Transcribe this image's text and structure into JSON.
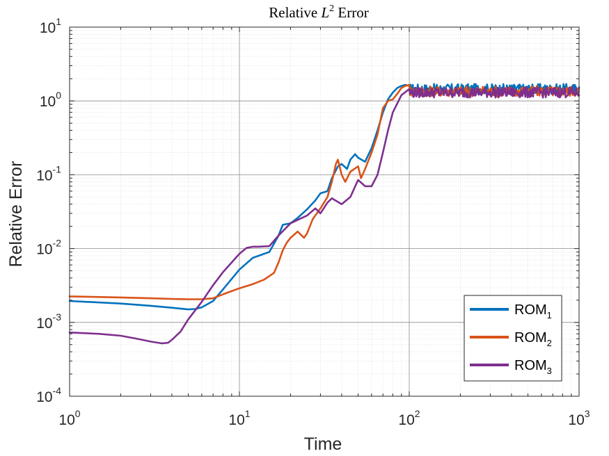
{
  "chart_data": {
    "type": "line",
    "title": "Relative",
    "title_math": "L",
    "title_math_sup": "2",
    "title_suffix": "Error",
    "xlabel": "Time",
    "ylabel": "Relative Error",
    "x_scale": "log",
    "y_scale": "log",
    "xlim": [
      1,
      1000
    ],
    "ylim": [
      0.0001,
      10
    ],
    "x_ticks": [
      {
        "value": 1,
        "base": "10",
        "exp": "0"
      },
      {
        "value": 10,
        "base": "10",
        "exp": "1"
      },
      {
        "value": 100,
        "base": "10",
        "exp": "2"
      },
      {
        "value": 1000,
        "base": "10",
        "exp": "3"
      }
    ],
    "y_ticks": [
      {
        "value": 0.0001,
        "base": "10",
        "exp": "-4"
      },
      {
        "value": 0.001,
        "base": "10",
        "exp": "-3"
      },
      {
        "value": 0.01,
        "base": "10",
        "exp": "-2"
      },
      {
        "value": 0.1,
        "base": "10",
        "exp": "-1"
      },
      {
        "value": 1,
        "base": "10",
        "exp": "0"
      },
      {
        "value": 10,
        "base": "10",
        "exp": "1"
      }
    ],
    "grid": true,
    "minor_grid": true,
    "legend_position": "bottom-right",
    "series": [
      {
        "name": "ROM",
        "sub": "1",
        "color": "#0072BD",
        "x": [
          1,
          2,
          3,
          4,
          5,
          5.5,
          6,
          7,
          8,
          10,
          12,
          13,
          15,
          17,
          18,
          20,
          22,
          25,
          28,
          30,
          33,
          35,
          38,
          40,
          43,
          45,
          48,
          50,
          55,
          60,
          65,
          70,
          75,
          80,
          85,
          90,
          95,
          100
        ],
        "y": [
          0.00195,
          0.0018,
          0.00168,
          0.00158,
          0.0015,
          0.00152,
          0.0016,
          0.00195,
          0.0028,
          0.0052,
          0.0075,
          0.008,
          0.009,
          0.015,
          0.021,
          0.022,
          0.026,
          0.034,
          0.045,
          0.056,
          0.06,
          0.09,
          0.13,
          0.14,
          0.12,
          0.16,
          0.19,
          0.17,
          0.15,
          0.23,
          0.4,
          0.7,
          1.05,
          1.3,
          1.5,
          1.6,
          1.65,
          1.6
        ]
      },
      {
        "name": "ROM",
        "sub": "2",
        "color": "#D95319",
        "x": [
          1,
          2,
          3,
          4,
          5,
          6,
          7,
          8,
          10,
          12,
          14,
          16,
          17,
          18,
          19,
          20,
          22,
          24,
          25,
          27,
          30,
          33,
          35,
          37,
          38,
          40,
          42,
          45,
          50,
          52,
          55,
          60,
          65,
          70,
          75,
          80,
          85,
          90,
          95,
          100
        ],
        "y": [
          0.00225,
          0.00218,
          0.00212,
          0.00208,
          0.00206,
          0.00206,
          0.00212,
          0.0024,
          0.0029,
          0.0033,
          0.0038,
          0.0047,
          0.0065,
          0.0095,
          0.012,
          0.014,
          0.017,
          0.014,
          0.016,
          0.025,
          0.035,
          0.05,
          0.08,
          0.14,
          0.16,
          0.1,
          0.08,
          0.11,
          0.13,
          0.09,
          0.12,
          0.2,
          0.35,
          0.8,
          1.0,
          1.05,
          1.25,
          1.5,
          1.6,
          1.65
        ]
      },
      {
        "name": "ROM",
        "sub": "3",
        "color": "#7E2F8E",
        "x": [
          1,
          1.5,
          2,
          2.5,
          3,
          3.5,
          3.8,
          4,
          4.5,
          5,
          6,
          7,
          8,
          10,
          11,
          12,
          13,
          15,
          17,
          20,
          25,
          28,
          30,
          33,
          35,
          40,
          45,
          50,
          55,
          60,
          65,
          70,
          75,
          80,
          90,
          100
        ],
        "y": [
          0.00073,
          0.0007,
          0.00066,
          0.0006,
          0.00055,
          0.00052,
          0.00053,
          0.00058,
          0.00075,
          0.0011,
          0.0019,
          0.0032,
          0.0048,
          0.0085,
          0.0102,
          0.0106,
          0.0106,
          0.0108,
          0.015,
          0.022,
          0.028,
          0.035,
          0.03,
          0.042,
          0.048,
          0.04,
          0.05,
          0.085,
          0.07,
          0.07,
          0.1,
          0.2,
          0.4,
          0.7,
          1.2,
          1.45
        ]
      }
    ],
    "noise_band": {
      "x_start": 100,
      "x_end": 1000,
      "centers": [
        1.45,
        1.35,
        1.3
      ],
      "spread_decades": 0.07
    }
  }
}
